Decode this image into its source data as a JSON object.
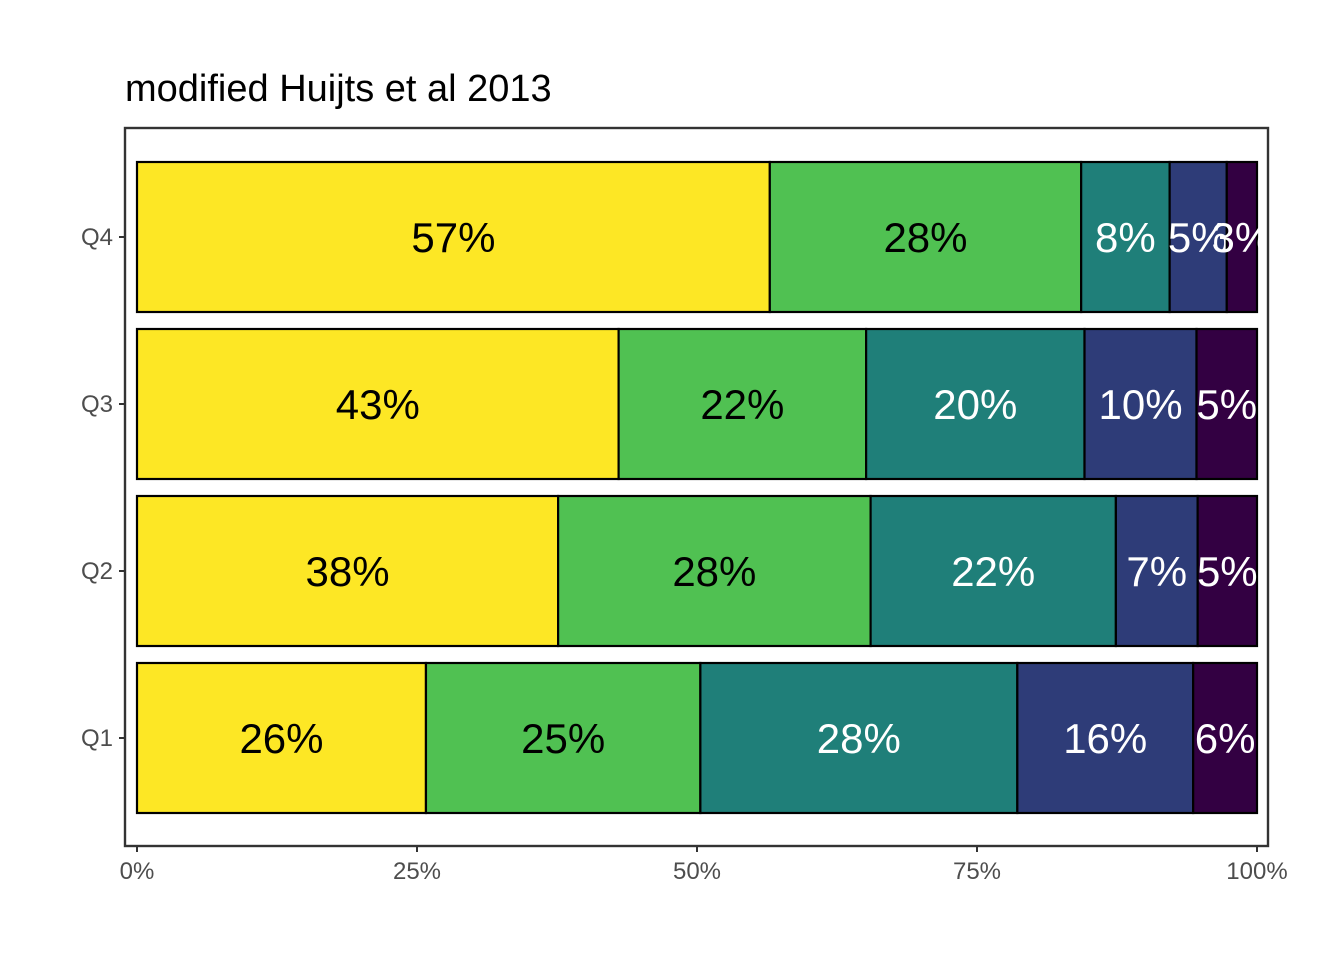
{
  "chart_data": {
    "type": "bar",
    "orientation": "horizontal",
    "stacked": true,
    "title": "modified Huijts et al 2013",
    "xlabel": "",
    "ylabel": "",
    "xlim": [
      0,
      100
    ],
    "x_ticks": [
      "0%",
      "25%",
      "50%",
      "75%",
      "100%"
    ],
    "categories": [
      "Q4",
      "Q3",
      "Q2",
      "Q1"
    ],
    "grid": false,
    "legend": "none",
    "series": [
      {
        "color": "#FDE725",
        "label_color": "#000000",
        "values": [
          56.5,
          43.0,
          37.6,
          25.8
        ],
        "labels": [
          "57%",
          "43%",
          "38%",
          "26%"
        ]
      },
      {
        "color": "#50C152",
        "label_color": "#000000",
        "values": [
          27.8,
          22.1,
          27.9,
          24.5
        ],
        "labels": [
          "28%",
          "22%",
          "28%",
          "25%"
        ]
      },
      {
        "color": "#1F7F79",
        "label_color": "#ffffff",
        "values": [
          7.9,
          19.5,
          21.9,
          28.3
        ],
        "labels": [
          "8%",
          "20%",
          "22%",
          "28%"
        ]
      },
      {
        "color": "#2E3C78",
        "label_color": "#ffffff",
        "values": [
          5.1,
          10.0,
          7.3,
          15.7
        ],
        "labels": [
          "5%",
          "10%",
          "7%",
          "16%"
        ]
      },
      {
        "color": "#330042",
        "label_color": "#ffffff",
        "values": [
          2.7,
          5.4,
          5.3,
          5.7
        ],
        "labels": [
          "3%",
          "5%",
          "5%",
          "6%"
        ]
      }
    ]
  }
}
